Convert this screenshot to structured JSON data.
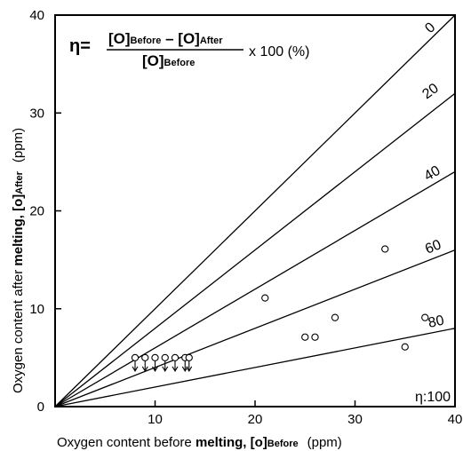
{
  "chart_data": {
    "type": "scatter",
    "xlabel_prefix": "Oxygen content before ",
    "xlabel_bold": "melting, [o]",
    "xlabel_sub": "Before",
    "xlabel_unit": "(ppm)",
    "ylabel_prefix": "Oxygen content after ",
    "ylabel_bold": "melting, [o]",
    "ylabel_sub": "After",
    "ylabel_unit": "(ppm)",
    "xlim": [
      0,
      40
    ],
    "ylim": [
      0,
      40
    ],
    "x_ticks": [
      10,
      20,
      30,
      40
    ],
    "y_ticks": [
      0,
      10,
      20,
      30,
      40
    ],
    "formula": {
      "lhs": "η=",
      "numerator_a": "[O]",
      "numerator_a_sub": "Before",
      "minus": " – ",
      "numerator_b": "[O]",
      "numerator_b_sub": "After",
      "denominator": "[O]",
      "denominator_sub": "Before",
      "rhs": "x 100 (%)"
    },
    "reference_lines": [
      {
        "eta": 0,
        "label": "0"
      },
      {
        "eta": 20,
        "label": "20"
      },
      {
        "eta": 40,
        "label": "40"
      },
      {
        "eta": 60,
        "label": "60"
      },
      {
        "eta": 80,
        "label": "80"
      },
      {
        "eta": 100,
        "label": "η:100"
      }
    ],
    "points": [
      {
        "x": 21,
        "y": 11.1
      },
      {
        "x": 25,
        "y": 7.1
      },
      {
        "x": 26,
        "y": 7.1
      },
      {
        "x": 28,
        "y": 9.1
      },
      {
        "x": 33,
        "y": 16.1
      },
      {
        "x": 35,
        "y": 6.1
      },
      {
        "x": 37,
        "y": 9.1
      }
    ],
    "upper_bound_points": [
      {
        "x": 8,
        "y": 5
      },
      {
        "x": 9,
        "y": 5
      },
      {
        "x": 10,
        "y": 5
      },
      {
        "x": 11,
        "y": 5
      },
      {
        "x": 12,
        "y": 5
      },
      {
        "x": 13,
        "y": 5
      },
      {
        "x": 13.4,
        "y": 5
      }
    ]
  }
}
